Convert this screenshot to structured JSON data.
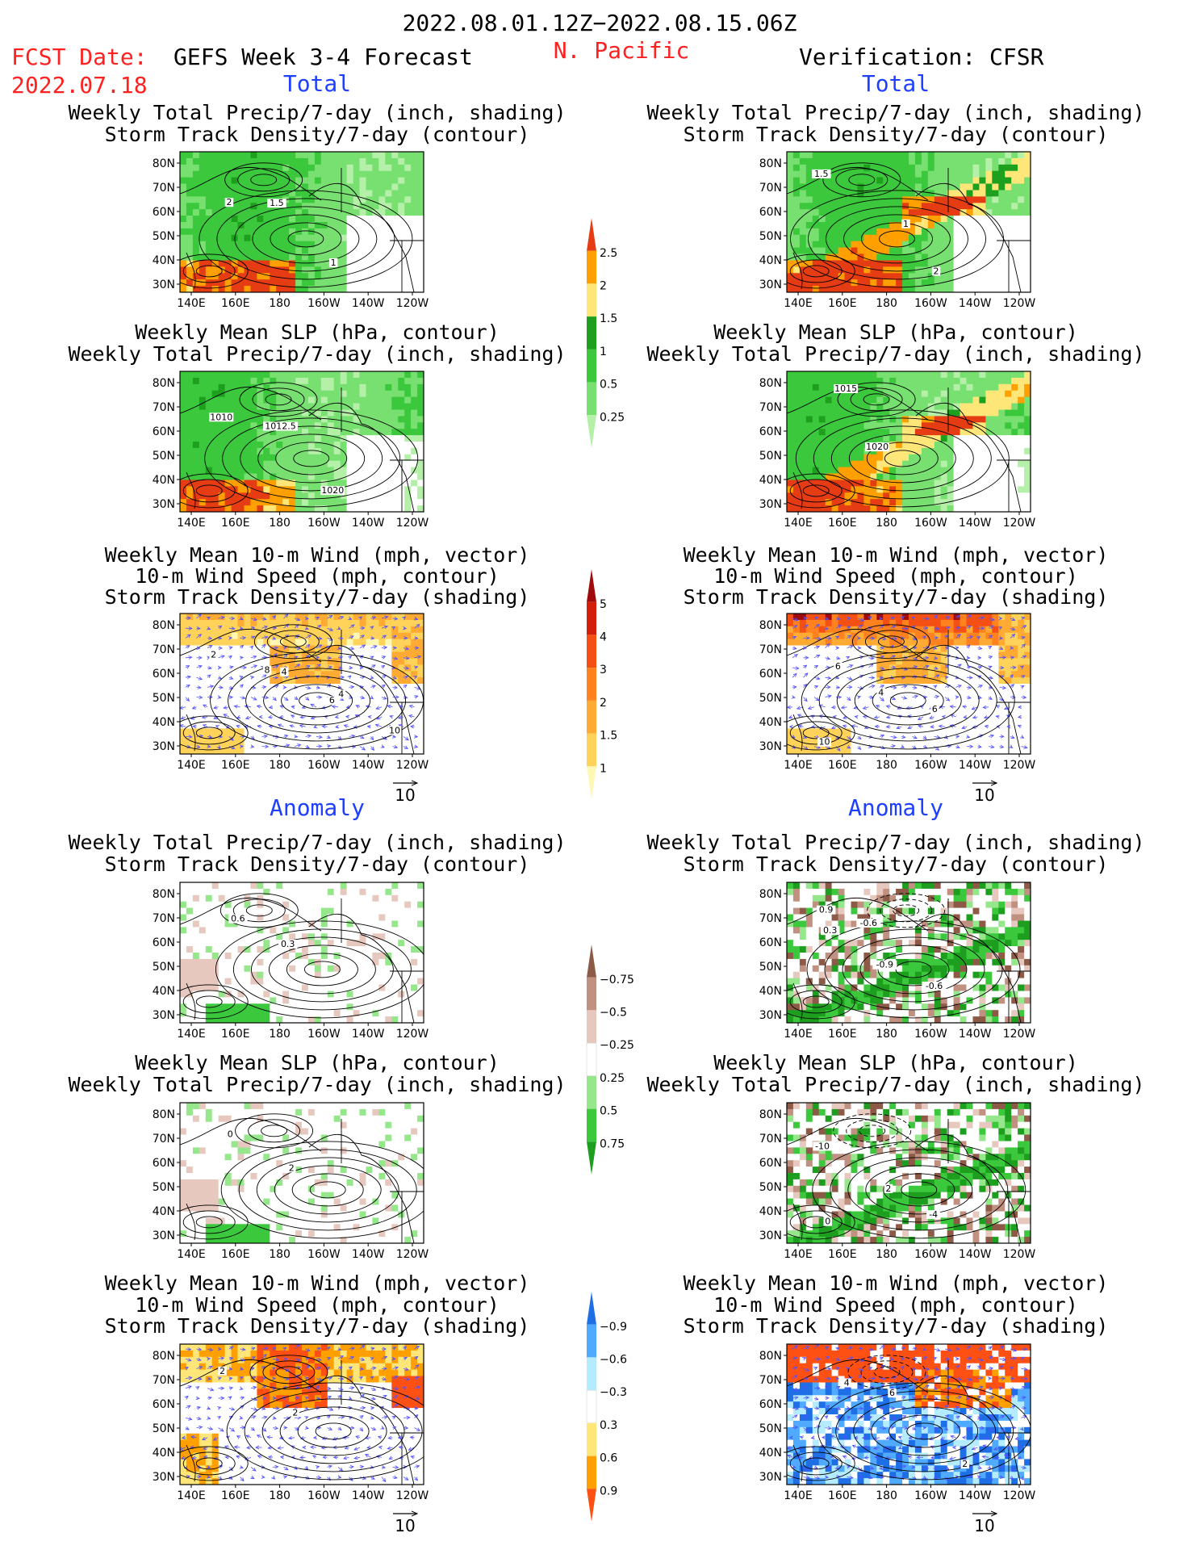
{
  "header": {
    "date_range": "2022.08.01.12Z−2022.08.15.06Z",
    "fcst_label": "FCST Date:",
    "fcst_date": "2022.07.18",
    "forecast_title": "GEFS Week 3-4 Forecast",
    "region": "N. Pacific",
    "verification": "Verification: CFSR"
  },
  "sections": {
    "total": "Total",
    "anomaly": "Anomaly"
  },
  "axes": {
    "lat_ticks": [
      "80N",
      "70N",
      "60N",
      "50N",
      "40N",
      "30N"
    ],
    "lon_ticks": [
      "140E",
      "160E",
      "180",
      "160W",
      "140W",
      "120W"
    ]
  },
  "titles": {
    "precip_storm": [
      "Weekly Total Precip/7-day (inch, shading)",
      "Storm Track Density/7-day (contour)"
    ],
    "slp_precip": [
      "Weekly Mean SLP (hPa, contour)",
      "Weekly Total Precip/7-day (inch, shading)"
    ],
    "wind_storm": [
      "Weekly Mean 10-m Wind (mph, vector)",
      "10-m Wind Speed (mph, contour)",
      "Storm Track Density/7-day (shading)"
    ]
  },
  "vector_ref": "10",
  "colorbars": [
    {
      "labels": [
        "0.25",
        "0.5",
        "1",
        "1.5",
        "2",
        "2.5"
      ],
      "colors": [
        "#b4f0a8",
        "#78e070",
        "#3cc83c",
        "#1ea01e",
        "#ffe678",
        "#ffa000",
        "#e63c14"
      ]
    },
    {
      "labels": [
        "1",
        "1.5",
        "2",
        "3",
        "4",
        "5"
      ],
      "colors": [
        "#fff8b4",
        "#ffd25a",
        "#ffaa32",
        "#ff821e",
        "#f55014",
        "#d21e0a",
        "#a00a0a"
      ]
    },
    {
      "labels": [
        "0.75",
        "0.5",
        "0.25",
        "−0.25",
        "−0.5",
        "−0.75"
      ],
      "colors": [
        "#1e9e1e",
        "#3cc83c",
        "#96e68c",
        "#ffffff",
        "#e6c8be",
        "#c09080",
        "#8c5a46"
      ]
    },
    {
      "labels": [
        "0.9",
        "0.6",
        "0.3",
        "−0.3",
        "−0.6",
        "−0.9"
      ],
      "colors": [
        "#ff5014",
        "#ffa000",
        "#ffe678",
        "#ffffff",
        "#b4ebff",
        "#50aaff",
        "#1e6ee6"
      ]
    }
  ],
  "panels": [
    {
      "id": "fc-total-precip",
      "col": 0,
      "row": 0,
      "title": "precip_storm",
      "contour_labels": [
        "2",
        "1.5",
        "1"
      ]
    },
    {
      "id": "fc-total-slp",
      "col": 0,
      "row": 1,
      "title": "slp_precip",
      "contour_labels": [
        "1010",
        "1012.5",
        "1020"
      ]
    },
    {
      "id": "fc-total-wind",
      "col": 0,
      "row": 2,
      "title": "wind_storm",
      "contour_labels": [
        "2",
        "4",
        "6",
        "10",
        "8",
        "4"
      ]
    },
    {
      "id": "fc-anom-precip",
      "col": 0,
      "row": 3,
      "title": "precip_storm",
      "contour_labels": [
        "0.6",
        "0.3"
      ]
    },
    {
      "id": "fc-anom-slp",
      "col": 0,
      "row": 4,
      "title": "slp_precip",
      "contour_labels": [
        "0",
        "2"
      ]
    },
    {
      "id": "fc-anom-wind",
      "col": 0,
      "row": 5,
      "title": "wind_storm",
      "contour_labels": [
        "2",
        "2"
      ]
    },
    {
      "id": "vf-total-precip",
      "col": 1,
      "row": 0,
      "title": "precip_storm",
      "contour_labels": [
        "1.5",
        "1",
        "2"
      ]
    },
    {
      "id": "vf-total-slp",
      "col": 1,
      "row": 1,
      "title": "slp_precip",
      "contour_labels": [
        "1015",
        "1020"
      ]
    },
    {
      "id": "vf-total-wind",
      "col": 1,
      "row": 2,
      "title": "wind_storm",
      "contour_labels": [
        "6",
        "4",
        "6",
        "10"
      ]
    },
    {
      "id": "vf-anom-precip",
      "col": 1,
      "row": 3,
      "title": "precip_storm",
      "contour_labels": [
        "0.3",
        "-0.9",
        "-0.6",
        "0.9",
        "-0.6"
      ]
    },
    {
      "id": "vf-anom-slp",
      "col": 1,
      "row": 4,
      "title": "slp_precip",
      "contour_labels": [
        "-10",
        "2",
        "-4",
        "0"
      ]
    },
    {
      "id": "vf-anom-wind",
      "col": 1,
      "row": 5,
      "title": "wind_storm",
      "contour_labels": [
        "4",
        "6",
        "2"
      ]
    }
  ]
}
